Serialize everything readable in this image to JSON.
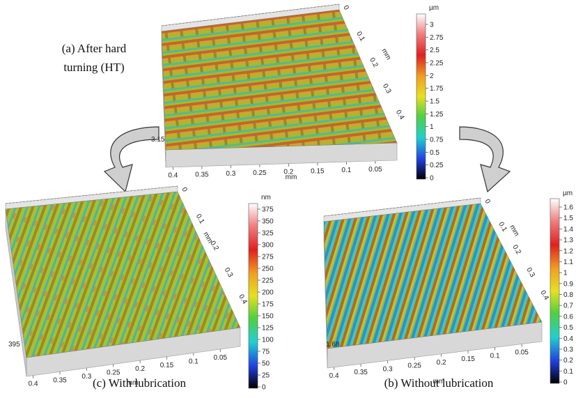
{
  "panels": [
    {
      "caption": [
        "(a) After hard",
        "turning (HT)"
      ],
      "z_label": 3.15,
      "x_ticks": [
        0.4,
        0.35,
        0.3,
        0.25,
        0.2,
        0.15,
        0.1,
        0.05
      ],
      "x_label": "mm",
      "y_ticks": [
        0,
        0.1,
        0.2,
        0.3,
        0.4
      ],
      "y_label": "mm",
      "colorbar": {
        "unit": "µm",
        "ticks": [
          3,
          2.75,
          2.5,
          2.25,
          2,
          1.75,
          1.5,
          1.25,
          1,
          0.75,
          0.5,
          0.25,
          0
        ]
      }
    },
    {
      "caption": [
        "(c) With lubrication"
      ],
      "z_label": 395,
      "x_ticks": [
        0.4,
        0.35,
        0.3,
        0.25,
        0.2,
        0.15,
        0.1,
        0.05
      ],
      "x_label": "mm",
      "y_ticks": [
        0,
        0.1,
        0.2,
        0.3,
        0.4
      ],
      "y_label": "mm",
      "colorbar": {
        "unit": "nm",
        "ticks": [
          375,
          350,
          325,
          300,
          275,
          250,
          225,
          200,
          175,
          150,
          125,
          100,
          75,
          50,
          25,
          0
        ]
      }
    },
    {
      "caption": [
        "(b) Without lubrication"
      ],
      "z_label": 1.68,
      "x_ticks": [
        0.4,
        0.35,
        0.3,
        0.25,
        0.2,
        0.15,
        0.1,
        0.05
      ],
      "x_label": "mm",
      "y_ticks": [
        0,
        0.1,
        0.2,
        0.3,
        0.4
      ],
      "y_label": "mm",
      "colorbar": {
        "unit": "µm",
        "ticks": [
          1.6,
          1.5,
          1.4,
          1.3,
          1.2,
          1.1,
          1,
          0.9,
          0.8,
          0.7,
          0.6,
          0.5,
          0.4,
          0.3,
          0.2,
          0.1,
          0
        ]
      }
    }
  ]
}
